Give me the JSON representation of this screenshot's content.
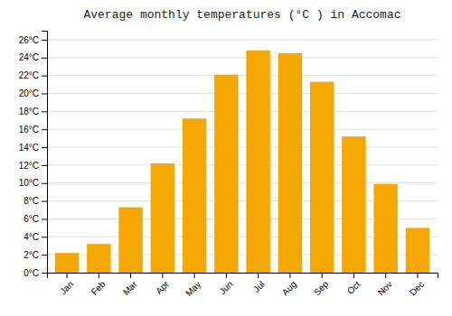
{
  "chart_data": {
    "type": "bar",
    "title": "Average monthly temperatures (°C ) in Accomac",
    "categories": [
      "Jan",
      "Feb",
      "Mar",
      "Apr",
      "May",
      "Jun",
      "Jul",
      "Aug",
      "Sep",
      "Oct",
      "Nov",
      "Dec"
    ],
    "values": [
      2.2,
      3.2,
      7.3,
      12.2,
      17.2,
      22.1,
      24.8,
      24.5,
      21.3,
      15.2,
      9.9,
      5.0
    ],
    "color": "#F5A800",
    "ylim": [
      0,
      27
    ],
    "yticks": [
      {
        "value": 0,
        "label": "0°C"
      },
      {
        "value": 2,
        "label": "2°C"
      },
      {
        "value": 4,
        "label": "4°C"
      },
      {
        "value": 6,
        "label": "6°C"
      },
      {
        "value": 8,
        "label": "8°C"
      },
      {
        "value": 10,
        "label": "10°C"
      },
      {
        "value": 12,
        "label": "12°C"
      },
      {
        "value": 14,
        "label": "14°C"
      },
      {
        "value": 16,
        "label": "16°C"
      },
      {
        "value": 18,
        "label": "18°C"
      },
      {
        "value": 20,
        "label": "20°C"
      },
      {
        "value": 22,
        "label": "22°C"
      },
      {
        "value": 24,
        "label": "24°C"
      },
      {
        "value": 26,
        "label": "26°C"
      }
    ],
    "grid": true
  }
}
